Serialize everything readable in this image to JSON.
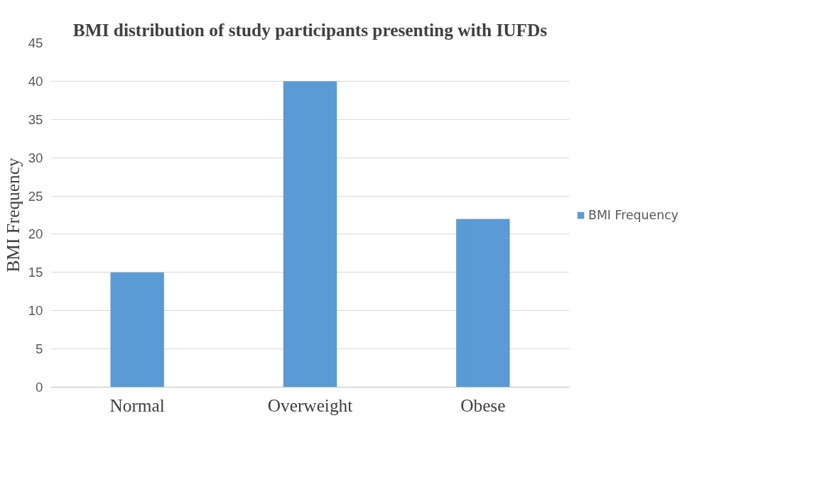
{
  "chart_data": {
    "type": "bar",
    "title": "BMI distribution of study participants presenting with IUFDs",
    "ylabel": "BMI Frequency",
    "categories": [
      "Normal",
      "Overweight",
      "Obese"
    ],
    "series": [
      {
        "name": "BMI Frequency",
        "color": "#5b9bd5",
        "values": [
          15,
          40,
          22
        ]
      }
    ],
    "ylim": [
      0,
      45
    ],
    "yticks": [
      0,
      5,
      10,
      15,
      20,
      25,
      30,
      35,
      40,
      45
    ],
    "grid": "y",
    "legend": "right"
  }
}
